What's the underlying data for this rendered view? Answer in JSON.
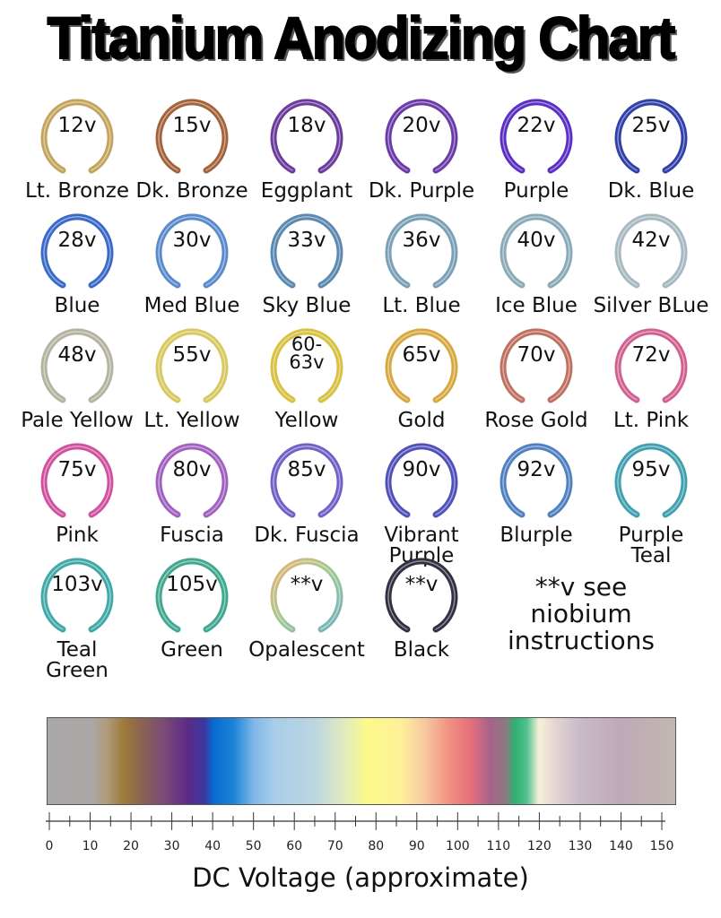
{
  "title": "Titanium Anodizing Chart",
  "rings": [
    {
      "voltage": "12v",
      "label": "Lt. Bronze",
      "color": "#c4a45c"
    },
    {
      "voltage": "15v",
      "label": "Dk. Bronze",
      "color": "#a4623a"
    },
    {
      "voltage": "18v",
      "label": "Eggplant",
      "color": "#6a3a9c"
    },
    {
      "voltage": "20v",
      "label": "Dk. Purple",
      "color": "#6a3aa8"
    },
    {
      "voltage": "22v",
      "label": "Purple",
      "color": "#5a30c4"
    },
    {
      "voltage": "25v",
      "label": "Dk. Blue",
      "color": "#3040a8"
    },
    {
      "voltage": "28v",
      "label": "Blue",
      "color": "#3a6ac8"
    },
    {
      "voltage": "30v",
      "label": "Med Blue",
      "color": "#5a8acc"
    },
    {
      "voltage": "33v",
      "label": "Sky Blue",
      "color": "#5a88b0"
    },
    {
      "voltage": "36v",
      "label": "Lt. Blue",
      "color": "#7aa0b8"
    },
    {
      "voltage": "40v",
      "label": "Ice Blue",
      "color": "#8aaab8"
    },
    {
      "voltage": "42v",
      "label": "Silver BLue",
      "color": "#a8b8c0"
    },
    {
      "voltage": "48v",
      "label": "Pale Yellow",
      "color": "#b4b2a0"
    },
    {
      "voltage": "55v",
      "label": "Lt. Yellow",
      "color": "#d8c860"
    },
    {
      "voltage": "60-\n63v",
      "label": "Yellow",
      "color": "#d8c040"
    },
    {
      "voltage": "65v",
      "label": "Gold",
      "color": "#d8a840"
    },
    {
      "voltage": "70v",
      "label": "Rose Gold",
      "color": "#c07060"
    },
    {
      "voltage": "72v",
      "label": "Lt. Pink",
      "color": "#d06090"
    },
    {
      "voltage": "75v",
      "label": "Pink",
      "color": "#d050a0"
    },
    {
      "voltage": "80v",
      "label": "Fuscia",
      "color": "#a060c0"
    },
    {
      "voltage": "85v",
      "label": "Dk. Fuscia",
      "color": "#7060c8"
    },
    {
      "voltage": "90v",
      "label": "Vibrant\nPurple",
      "color": "#5050b8"
    },
    {
      "voltage": "92v",
      "label": "Blurple",
      "color": "#5080c0"
    },
    {
      "voltage": "95v",
      "label": "Purple\nTeal",
      "color": "#40a0b0"
    },
    {
      "voltage": "103v",
      "label": "Teal\nGreen",
      "color": "#40a8a8"
    },
    {
      "voltage": "105v",
      "label": "Green",
      "color": "#40a890"
    },
    {
      "voltage": "**v",
      "label": "Opalescent",
      "color": "#a0c890"
    },
    {
      "voltage": "**v",
      "label": "Black",
      "color": "#303040"
    }
  ],
  "note": "**v see\nniobium\ninstructions",
  "chart_data": {
    "type": "gradient-scale",
    "xlabel": "DC Voltage (approximate)",
    "xlim": [
      0,
      150
    ],
    "ticks": [
      0,
      10,
      20,
      30,
      40,
      50,
      60,
      70,
      80,
      90,
      100,
      110,
      120,
      130,
      140,
      150
    ],
    "gradient": [
      {
        "v": 0,
        "color": "#aba8a9"
      },
      {
        "v": 10,
        "color": "#aca8a8"
      },
      {
        "v": 14,
        "color": "#b09a7a"
      },
      {
        "v": 18,
        "color": "#9e7a3a"
      },
      {
        "v": 22,
        "color": "#8b6650"
      },
      {
        "v": 28,
        "color": "#7a4a78"
      },
      {
        "v": 34,
        "color": "#5a2a88"
      },
      {
        "v": 38,
        "color": "#3a3aa0"
      },
      {
        "v": 40,
        "color": "#0a6ad0"
      },
      {
        "v": 45,
        "color": "#1a84d8"
      },
      {
        "v": 50,
        "color": "#7fb8e8"
      },
      {
        "v": 55,
        "color": "#a8cde8"
      },
      {
        "v": 65,
        "color": "#bcd5e2"
      },
      {
        "v": 72,
        "color": "#e0ebbf"
      },
      {
        "v": 78,
        "color": "#fdf98a"
      },
      {
        "v": 86,
        "color": "#fdf098"
      },
      {
        "v": 92,
        "color": "#f8c8a0"
      },
      {
        "v": 98,
        "color": "#f09080"
      },
      {
        "v": 103,
        "color": "#e8707a"
      },
      {
        "v": 108,
        "color": "#a8628a"
      },
      {
        "v": 112,
        "color": "#8a7a80"
      },
      {
        "v": 114,
        "color": "#30b070"
      },
      {
        "v": 117,
        "color": "#50c090"
      },
      {
        "v": 120,
        "color": "#f6f0d8"
      },
      {
        "v": 125,
        "color": "#e0d0d0"
      },
      {
        "v": 130,
        "color": "#c8bcc8"
      },
      {
        "v": 140,
        "color": "#c0a8b8"
      },
      {
        "v": 153,
        "color": "#c0b8b0"
      }
    ]
  }
}
